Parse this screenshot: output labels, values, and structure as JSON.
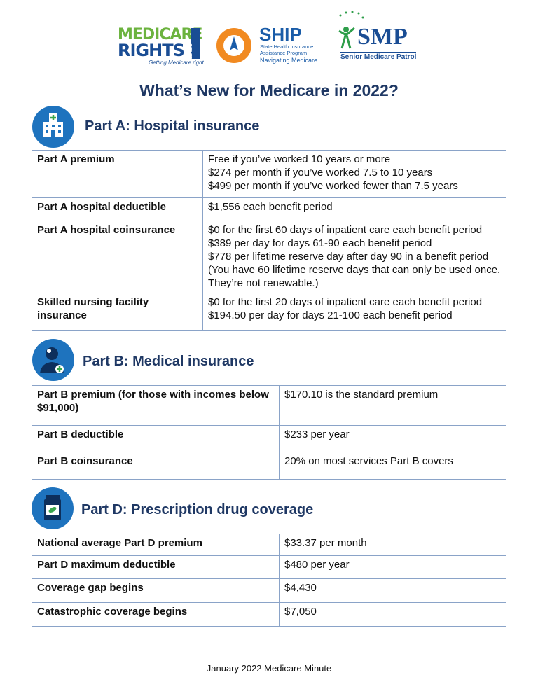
{
  "logos": {
    "mrc": {
      "line1": "MEDICARE",
      "line2": "RIGHTS",
      "side": "CENTER",
      "tagline": "Getting Medicare right"
    },
    "ship": {
      "name": "SHIP",
      "line1": "State Health Insurance",
      "line2": "Assistance Program",
      "tagline": "Navigating Medicare"
    },
    "smp": {
      "name": "SMP",
      "tagline": "Senior Medicare Patrol"
    }
  },
  "title": "What’s New for Medicare in 2022?",
  "sections": [
    {
      "heading": "Part A: Hospital insurance",
      "rows": [
        {
          "label": "Part A premium",
          "value": [
            "Free if you’ve worked 10 years or more",
            "$274 per month if you’ve worked 7.5 to 10 years",
            "$499 per month if you’ve worked fewer than 7.5 years"
          ]
        },
        {
          "label": "Part A hospital deductible",
          "value": [
            "$1,556 each benefit period"
          ]
        },
        {
          "label": "Part A hospital coinsurance",
          "value": [
            "$0 for the first 60 days of inpatient care each benefit period",
            "$389 per day for days 61-90 each benefit period",
            "$778 per lifetime reserve day after day 90 in a benefit period",
            "(You have 60 lifetime reserve days that can only be used once. They’re not renewable.)"
          ]
        },
        {
          "label": "Skilled nursing facility insurance",
          "value": [
            "$0 for the first 20 days of inpatient care each benefit period",
            "$194.50 per day for days 21-100 each benefit period"
          ]
        }
      ]
    },
    {
      "heading": "Part B: Medical insurance",
      "rows": [
        {
          "label": "Part B premium (for those with incomes below $91,000)",
          "value": [
            "$170.10 is the standard premium"
          ]
        },
        {
          "label": "Part B deductible",
          "value": [
            "$233 per year"
          ]
        },
        {
          "label": "Part B coinsurance",
          "value": [
            "20% on most services Part B covers"
          ]
        }
      ]
    },
    {
      "heading": "Part D: Prescription drug coverage",
      "rows": [
        {
          "label": "National average Part D premium",
          "value": [
            "$33.37 per month"
          ]
        },
        {
          "label": "Part D maximum deductible",
          "value": [
            "$480 per year"
          ]
        },
        {
          "label": "Coverage gap begins",
          "value": [
            "$4,430"
          ]
        },
        {
          "label": "Catastrophic coverage begins",
          "value": [
            "$7,050"
          ]
        }
      ]
    }
  ],
  "footer": "January 2022 Medicare Minute"
}
